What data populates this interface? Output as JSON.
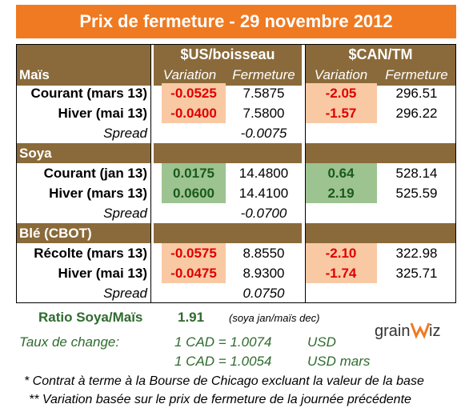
{
  "title": "Prix de fermeture - 29 novembre 2012",
  "headers": {
    "us": "$US/boisseau",
    "can": "$CAN/TM",
    "variation": "Variation",
    "fermeture": "Fermeture"
  },
  "sections": [
    {
      "name": "Maïs",
      "rows": [
        {
          "label": "Courant (mars 13)",
          "us_var": "-0.0525",
          "us_close": "7.5875",
          "can_var": "-2.05",
          "can_close": "296.51"
        },
        {
          "label": "Hiver (mai 13)",
          "us_var": "-0.0400",
          "us_close": "7.5800",
          "can_var": "-1.57",
          "can_close": "296.22"
        }
      ],
      "spread_label": "Spread",
      "spread_value": "-0.0075"
    },
    {
      "name": "Soya",
      "rows": [
        {
          "label": "Courant (jan 13)",
          "us_var": "0.0175",
          "us_close": "14.4800",
          "can_var": "0.64",
          "can_close": "528.14"
        },
        {
          "label": "Hiver (mars 13)",
          "us_var": "0.0600",
          "us_close": "14.4100",
          "can_var": "2.19",
          "can_close": "525.59"
        }
      ],
      "spread_label": "Spread",
      "spread_value": "-0.0700"
    },
    {
      "name": "Blé (CBOT)",
      "rows": [
        {
          "label": "Récolte (mars 13)",
          "us_var": "-0.0575",
          "us_close": "8.8550",
          "can_var": "-2.10",
          "can_close": "322.98"
        },
        {
          "label": "Hiver (mai 13)",
          "us_var": "-0.0475",
          "us_close": "8.9300",
          "can_var": "-1.74",
          "can_close": "325.71"
        }
      ],
      "spread_label": "Spread",
      "spread_value": "0.0750"
    }
  ],
  "ratio": {
    "label": "Ratio Soya/Maïs",
    "value": "1.91",
    "note": "(soya jan/maïs dec)"
  },
  "exchange": {
    "label": "Taux de change:",
    "rate1": "1 CAD =  1.0074",
    "unit1": "USD",
    "rate2": "1 CAD =  1.0054",
    "unit2": "USD mars"
  },
  "logo": "grainwiz",
  "footnotes": [
    "* Contrat à terme à la Bourse de Chicago excluant la valeur de la base",
    "** Variation basée sur le prix de fermeture de la journée précédente"
  ],
  "colors": {
    "title_bg": "#f07a21",
    "header_bg": "#8a6a3a",
    "neg_bg": "#f9c9a4",
    "pos_bg": "#9dc391",
    "neg_text": "#e00000"
  }
}
